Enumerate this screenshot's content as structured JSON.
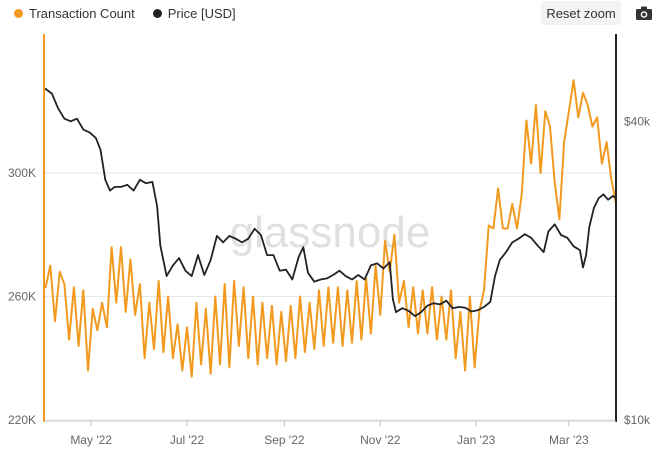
{
  "legend": [
    {
      "label": "Transaction Count",
      "color": "#f29a1f"
    },
    {
      "label": "Price [USD]",
      "color": "#222222"
    }
  ],
  "toolbar": {
    "reset_label": "Reset zoom",
    "camera_icon": "camera-icon"
  },
  "watermark": "glassnode",
  "colors": {
    "tx": "#f29a1f",
    "price": "#222222",
    "grid": "#e6e6e6"
  },
  "chart_data": {
    "type": "line",
    "xlabel": "",
    "x_range": [
      "2022-04-01",
      "2023-03-31"
    ],
    "x_ticks": [
      {
        "date": "2022-05-01",
        "label": "May '22"
      },
      {
        "date": "2022-07-01",
        "label": "Jul '22"
      },
      {
        "date": "2022-09-01",
        "label": "Sep '22"
      },
      {
        "date": "2022-11-01",
        "label": "Nov '22"
      },
      {
        "date": "2023-01-01",
        "label": "Jan '23"
      },
      {
        "date": "2023-03-01",
        "label": "Mar '23"
      }
    ],
    "y_left": {
      "label": "",
      "range": [
        220000,
        345000
      ],
      "ticks": [
        {
          "value": 220000,
          "label": "220K"
        },
        {
          "value": 260000,
          "label": "260K"
        },
        {
          "value": 300000,
          "label": "300K"
        }
      ]
    },
    "y_right": {
      "label": "",
      "scale": "log",
      "range": [
        10000,
        60000
      ],
      "ticks": [
        {
          "value": 10000,
          "label": "$10k"
        },
        {
          "value": 40000,
          "label": "$40k"
        }
      ]
    },
    "series": [
      {
        "name": "Transaction Count",
        "axis": "left",
        "color": "#f29a1f",
        "points": [
          [
            "2022-04-02",
            263000
          ],
          [
            "2022-04-05",
            270000
          ],
          [
            "2022-04-08",
            252000
          ],
          [
            "2022-04-11",
            268000
          ],
          [
            "2022-04-14",
            264000
          ],
          [
            "2022-04-17",
            246000
          ],
          [
            "2022-04-20",
            263000
          ],
          [
            "2022-04-23",
            244000
          ],
          [
            "2022-04-26",
            262000
          ],
          [
            "2022-04-29",
            236000
          ],
          [
            "2022-05-02",
            256000
          ],
          [
            "2022-05-05",
            249000
          ],
          [
            "2022-05-08",
            258000
          ],
          [
            "2022-05-11",
            250000
          ],
          [
            "2022-05-14",
            276000
          ],
          [
            "2022-05-17",
            258000
          ],
          [
            "2022-05-20",
            276000
          ],
          [
            "2022-05-23",
            255000
          ],
          [
            "2022-05-26",
            272000
          ],
          [
            "2022-05-29",
            254000
          ],
          [
            "2022-06-01",
            264000
          ],
          [
            "2022-06-04",
            240000
          ],
          [
            "2022-06-07",
            258000
          ],
          [
            "2022-06-10",
            243000
          ],
          [
            "2022-06-13",
            265000
          ],
          [
            "2022-06-16",
            242000
          ],
          [
            "2022-06-19",
            260000
          ],
          [
            "2022-06-22",
            240000
          ],
          [
            "2022-06-25",
            251000
          ],
          [
            "2022-06-28",
            236000
          ],
          [
            "2022-07-01",
            250000
          ],
          [
            "2022-07-04",
            234000
          ],
          [
            "2022-07-07",
            258000
          ],
          [
            "2022-07-10",
            238000
          ],
          [
            "2022-07-13",
            256000
          ],
          [
            "2022-07-16",
            235000
          ],
          [
            "2022-07-19",
            260000
          ],
          [
            "2022-07-22",
            238000
          ],
          [
            "2022-07-25",
            264000
          ],
          [
            "2022-07-28",
            237000
          ],
          [
            "2022-07-31",
            265000
          ],
          [
            "2022-08-03",
            244000
          ],
          [
            "2022-08-06",
            263000
          ],
          [
            "2022-08-09",
            240000
          ],
          [
            "2022-08-12",
            260000
          ],
          [
            "2022-08-15",
            238000
          ],
          [
            "2022-08-18",
            258000
          ],
          [
            "2022-08-21",
            240000
          ],
          [
            "2022-08-24",
            257000
          ],
          [
            "2022-08-27",
            238000
          ],
          [
            "2022-08-30",
            255000
          ],
          [
            "2022-09-02",
            239000
          ],
          [
            "2022-09-05",
            257000
          ],
          [
            "2022-09-08",
            240000
          ],
          [
            "2022-09-11",
            260000
          ],
          [
            "2022-09-14",
            242000
          ],
          [
            "2022-09-17",
            258000
          ],
          [
            "2022-09-20",
            243000
          ],
          [
            "2022-09-23",
            262000
          ],
          [
            "2022-09-26",
            244000
          ],
          [
            "2022-09-29",
            263000
          ],
          [
            "2022-10-02",
            245000
          ],
          [
            "2022-10-05",
            263000
          ],
          [
            "2022-10-08",
            244000
          ],
          [
            "2022-10-11",
            262000
          ],
          [
            "2022-10-14",
            245000
          ],
          [
            "2022-10-17",
            265000
          ],
          [
            "2022-10-20",
            246000
          ],
          [
            "2022-10-23",
            266000
          ],
          [
            "2022-10-26",
            248000
          ],
          [
            "2022-10-29",
            270000
          ],
          [
            "2022-11-01",
            254000
          ],
          [
            "2022-11-04",
            278000
          ],
          [
            "2022-11-07",
            268000
          ],
          [
            "2022-11-10",
            280000
          ],
          [
            "2022-11-13",
            258000
          ],
          [
            "2022-11-16",
            265000
          ],
          [
            "2022-11-19",
            250000
          ],
          [
            "2022-11-22",
            263000
          ],
          [
            "2022-11-25",
            248000
          ],
          [
            "2022-11-28",
            262000
          ],
          [
            "2022-12-01",
            248000
          ],
          [
            "2022-12-04",
            263000
          ],
          [
            "2022-12-07",
            246000
          ],
          [
            "2022-12-10",
            260000
          ],
          [
            "2022-12-13",
            246000
          ],
          [
            "2022-12-16",
            262000
          ],
          [
            "2022-12-19",
            240000
          ],
          [
            "2022-12-22",
            255000
          ],
          [
            "2022-12-25",
            236000
          ],
          [
            "2022-12-28",
            260000
          ],
          [
            "2022-12-31",
            237000
          ],
          [
            "2023-01-03",
            255000
          ],
          [
            "2023-01-06",
            262000
          ],
          [
            "2023-01-09",
            283000
          ],
          [
            "2023-01-12",
            282000
          ],
          [
            "2023-01-15",
            295000
          ],
          [
            "2023-01-18",
            282000
          ],
          [
            "2023-01-21",
            282000
          ],
          [
            "2023-01-24",
            290000
          ],
          [
            "2023-01-27",
            282000
          ],
          [
            "2023-01-30",
            293000
          ],
          [
            "2023-02-02",
            317000
          ],
          [
            "2023-02-05",
            303000
          ],
          [
            "2023-02-08",
            322000
          ],
          [
            "2023-02-11",
            300000
          ],
          [
            "2023-02-14",
            320000
          ],
          [
            "2023-02-17",
            315000
          ],
          [
            "2023-02-20",
            297000
          ],
          [
            "2023-02-23",
            285000
          ],
          [
            "2023-02-26",
            310000
          ],
          [
            "2023-03-01",
            320000
          ],
          [
            "2023-03-04",
            330000
          ],
          [
            "2023-03-07",
            318000
          ],
          [
            "2023-03-10",
            326000
          ],
          [
            "2023-03-13",
            322000
          ],
          [
            "2023-03-16",
            315000
          ],
          [
            "2023-03-19",
            318000
          ],
          [
            "2023-03-22",
            303000
          ],
          [
            "2023-03-25",
            310000
          ],
          [
            "2023-03-28",
            298000
          ],
          [
            "2023-03-31",
            290000
          ]
        ]
      },
      {
        "name": "Price [USD]",
        "axis": "right",
        "color": "#222222",
        "points": [
          [
            "2022-04-02",
            46500
          ],
          [
            "2022-04-06",
            45500
          ],
          [
            "2022-04-10",
            42500
          ],
          [
            "2022-04-14",
            40500
          ],
          [
            "2022-04-18",
            40000
          ],
          [
            "2022-04-22",
            40500
          ],
          [
            "2022-04-26",
            38500
          ],
          [
            "2022-04-30",
            38000
          ],
          [
            "2022-05-04",
            37000
          ],
          [
            "2022-05-07",
            35000
          ],
          [
            "2022-05-10",
            30500
          ],
          [
            "2022-05-13",
            29000
          ],
          [
            "2022-05-16",
            29500
          ],
          [
            "2022-05-20",
            29500
          ],
          [
            "2022-05-24",
            29800
          ],
          [
            "2022-05-28",
            29000
          ],
          [
            "2022-06-01",
            30500
          ],
          [
            "2022-06-05",
            30000
          ],
          [
            "2022-06-09",
            30200
          ],
          [
            "2022-06-12",
            27000
          ],
          [
            "2022-06-14",
            22500
          ],
          [
            "2022-06-18",
            19500
          ],
          [
            "2022-06-22",
            20500
          ],
          [
            "2022-06-26",
            21200
          ],
          [
            "2022-06-30",
            20000
          ],
          [
            "2022-07-04",
            19500
          ],
          [
            "2022-07-08",
            21500
          ],
          [
            "2022-07-12",
            19600
          ],
          [
            "2022-07-16",
            21000
          ],
          [
            "2022-07-20",
            23500
          ],
          [
            "2022-07-24",
            22800
          ],
          [
            "2022-07-28",
            23500
          ],
          [
            "2022-08-01",
            23200
          ],
          [
            "2022-08-05",
            22800
          ],
          [
            "2022-08-09",
            23200
          ],
          [
            "2022-08-13",
            24300
          ],
          [
            "2022-08-17",
            23600
          ],
          [
            "2022-08-21",
            21500
          ],
          [
            "2022-08-25",
            21500
          ],
          [
            "2022-08-29",
            20000
          ],
          [
            "2022-09-02",
            20100
          ],
          [
            "2022-09-06",
            19200
          ],
          [
            "2022-09-10",
            21300
          ],
          [
            "2022-09-13",
            22300
          ],
          [
            "2022-09-16",
            19800
          ],
          [
            "2022-09-20",
            19000
          ],
          [
            "2022-09-24",
            19200
          ],
          [
            "2022-09-28",
            19300
          ],
          [
            "2022-10-02",
            19600
          ],
          [
            "2022-10-06",
            20000
          ],
          [
            "2022-10-10",
            19500
          ],
          [
            "2022-10-14",
            19200
          ],
          [
            "2022-10-18",
            19600
          ],
          [
            "2022-10-22",
            19200
          ],
          [
            "2022-10-26",
            20500
          ],
          [
            "2022-10-30",
            20700
          ],
          [
            "2022-11-03",
            20200
          ],
          [
            "2022-11-07",
            20800
          ],
          [
            "2022-11-09",
            17500
          ],
          [
            "2022-11-11",
            16500
          ],
          [
            "2022-11-15",
            16800
          ],
          [
            "2022-11-19",
            16600
          ],
          [
            "2022-11-23",
            16200
          ],
          [
            "2022-11-27",
            16500
          ],
          [
            "2022-12-01",
            17000
          ],
          [
            "2022-12-05",
            17200
          ],
          [
            "2022-12-09",
            17100
          ],
          [
            "2022-12-13",
            17400
          ],
          [
            "2022-12-17",
            16800
          ],
          [
            "2022-12-21",
            16900
          ],
          [
            "2022-12-25",
            16850
          ],
          [
            "2022-12-29",
            16550
          ],
          [
            "2023-01-02",
            16650
          ],
          [
            "2023-01-06",
            16900
          ],
          [
            "2023-01-10",
            17300
          ],
          [
            "2023-01-13",
            19500
          ],
          [
            "2023-01-16",
            21000
          ],
          [
            "2023-01-20",
            21800
          ],
          [
            "2023-01-24",
            22800
          ],
          [
            "2023-01-28",
            23200
          ],
          [
            "2023-02-01",
            23700
          ],
          [
            "2023-02-05",
            23300
          ],
          [
            "2023-02-09",
            22500
          ],
          [
            "2023-02-13",
            21800
          ],
          [
            "2023-02-16",
            24000
          ],
          [
            "2023-02-20",
            24800
          ],
          [
            "2023-02-24",
            23600
          ],
          [
            "2023-02-28",
            23300
          ],
          [
            "2023-03-04",
            22400
          ],
          [
            "2023-03-08",
            22000
          ],
          [
            "2023-03-10",
            20300
          ],
          [
            "2023-03-12",
            21500
          ],
          [
            "2023-03-14",
            24500
          ],
          [
            "2023-03-17",
            26800
          ],
          [
            "2023-03-20",
            28000
          ],
          [
            "2023-03-23",
            28500
          ],
          [
            "2023-03-26",
            27800
          ],
          [
            "2023-03-29",
            28300
          ],
          [
            "2023-03-31",
            28000
          ]
        ]
      }
    ]
  }
}
